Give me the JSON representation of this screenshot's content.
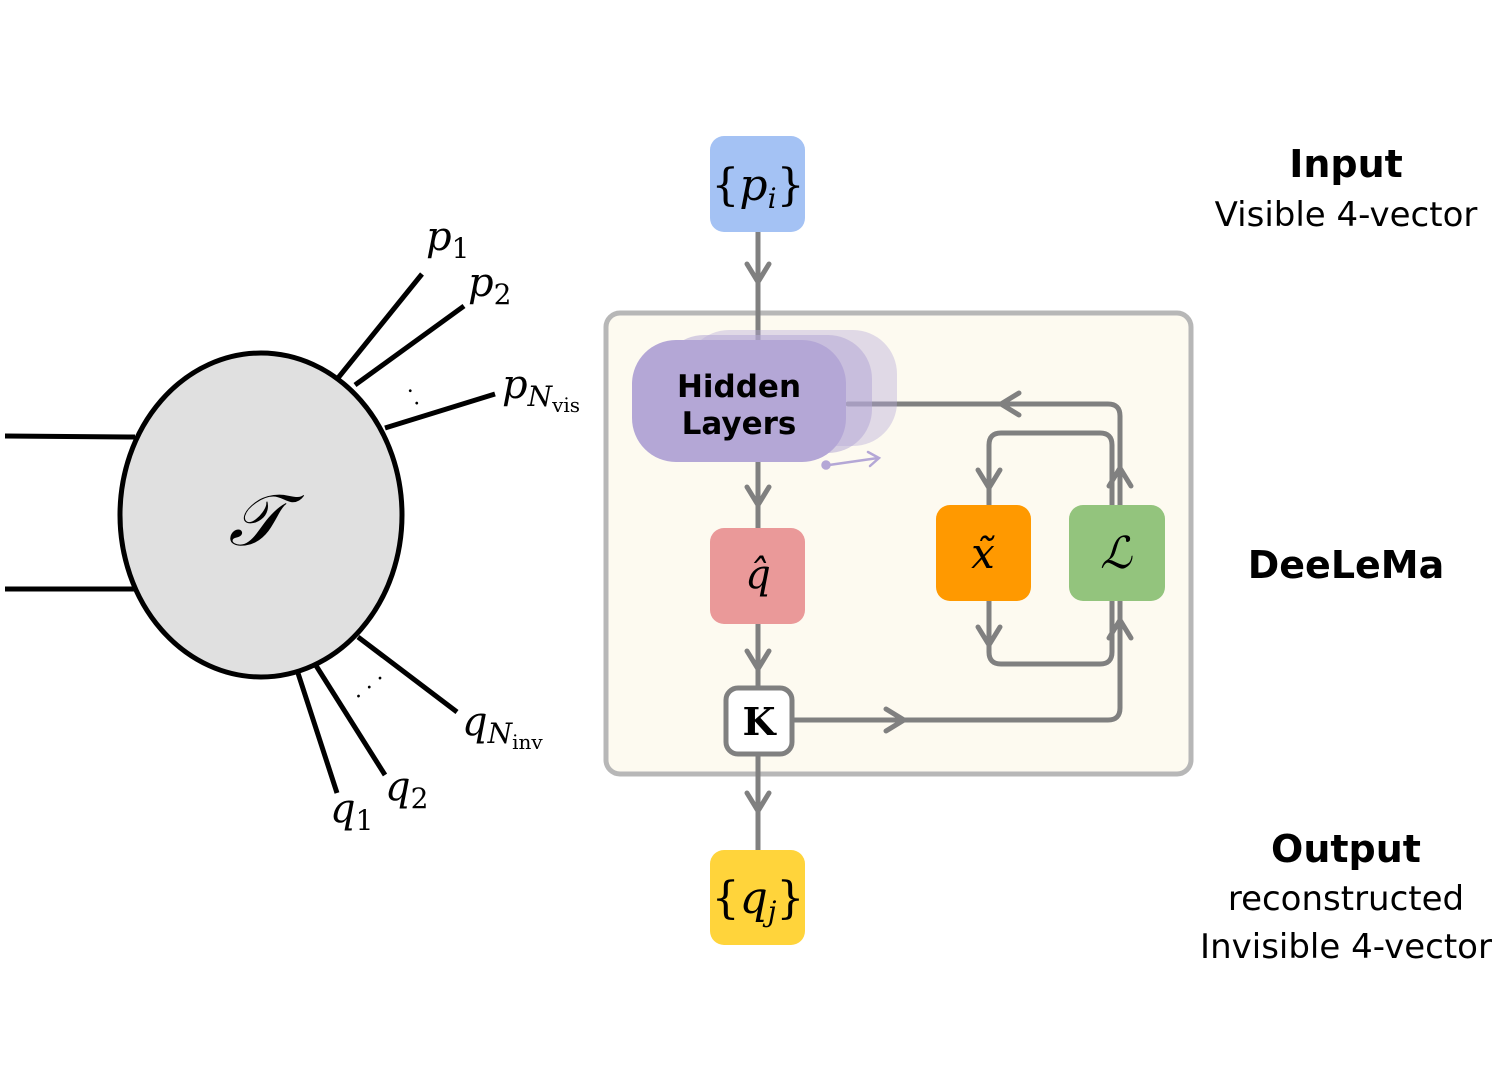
{
  "diagram": {
    "process": {
      "blob_label": "𝒯",
      "visible": {
        "p1": {
          "sym": "p",
          "sub": "1"
        },
        "p2": {
          "sym": "p",
          "sub": "2"
        },
        "pN": {
          "sym": "p",
          "sub": "N",
          "subsub": "vis"
        }
      },
      "invisible": {
        "q1": {
          "sym": "q",
          "sub": "1"
        },
        "q2": {
          "sym": "q",
          "sub": "2"
        },
        "qN": {
          "sym": "q",
          "sub": "N",
          "subsub": "inv"
        }
      },
      "dots": "· · ·"
    },
    "network": {
      "input_node": {
        "open": "{",
        "sym": "p",
        "sub": "i",
        "close": "}"
      },
      "hidden_layers": {
        "line1": "Hidden",
        "line2": "Layers"
      },
      "qhat": "q̂",
      "xtilde": "x̃",
      "loss": "ℒ",
      "k_node": "K",
      "output_node": {
        "open": "{",
        "sym": "q",
        "sub": "j",
        "close": "}"
      }
    },
    "labels": {
      "input_title": "Input",
      "input_sub": "Visible 4-vector",
      "model_title": "DeeLeMa",
      "output_title": "Output",
      "output_sub1": "reconstructed",
      "output_sub2": "Invisible 4-vector"
    },
    "colors": {
      "input": "#a4c2f4",
      "hidden": "#b4a7d6",
      "qhat": "#ea9999",
      "xtilde": "#ff9900",
      "loss": "#93c47d",
      "output": "#ffd43b",
      "panel_bg": "#fdfaf0",
      "panel_border": "#b7b7b7",
      "arrow": "#808080"
    }
  }
}
